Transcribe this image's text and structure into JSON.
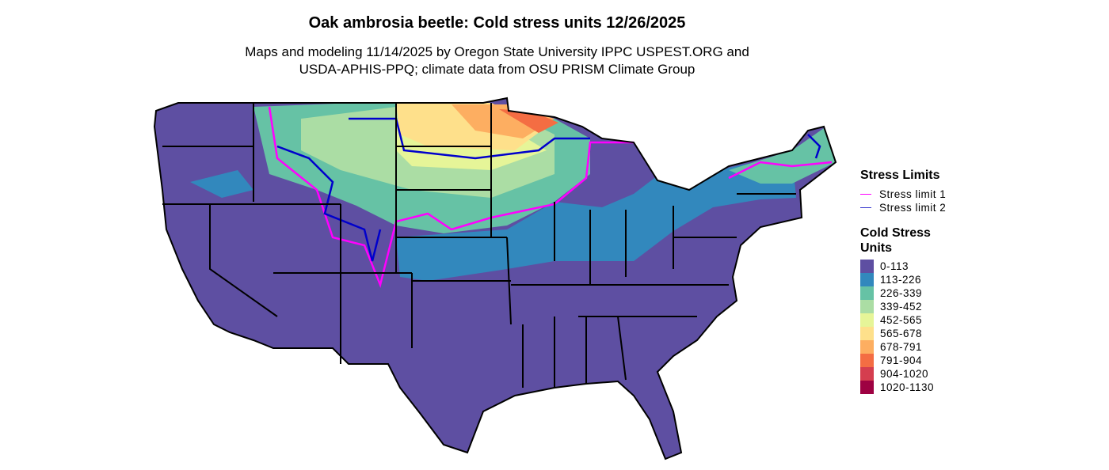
{
  "title": "Oak ambrosia beetle: Cold stress units 12/26/2025",
  "subtitle_line1": "Maps and modeling 11/14/2025 by Oregon State University IPPC USPEST.ORG and",
  "subtitle_line2": "USDA-APHIS-PPQ; climate data from OSU PRISM Climate Group",
  "legend": {
    "stress_title": "Stress Limits",
    "stress_items": [
      {
        "label": "Stress limit 1",
        "color": "#FF00FF"
      },
      {
        "label": "Stress limit 2",
        "color": "#0000CC"
      }
    ],
    "units_title_1": "Cold Stress",
    "units_title_2": "Units",
    "bins": [
      {
        "label": "0-113",
        "color": "#5E4FA2"
      },
      {
        "label": "113-226",
        "color": "#3288BD"
      },
      {
        "label": "226-339",
        "color": "#66C2A5"
      },
      {
        "label": "339-452",
        "color": "#ABDDA4"
      },
      {
        "label": "452-565",
        "color": "#E6F598"
      },
      {
        "label": "565-678",
        "color": "#FEE08B"
      },
      {
        "label": "678-791",
        "color": "#FDAE61"
      },
      {
        "label": "791-904",
        "color": "#F46D43"
      },
      {
        "label": "904-1020",
        "color": "#D53E4F"
      },
      {
        "label": "1020-1130",
        "color": "#9E0142"
      }
    ]
  }
}
